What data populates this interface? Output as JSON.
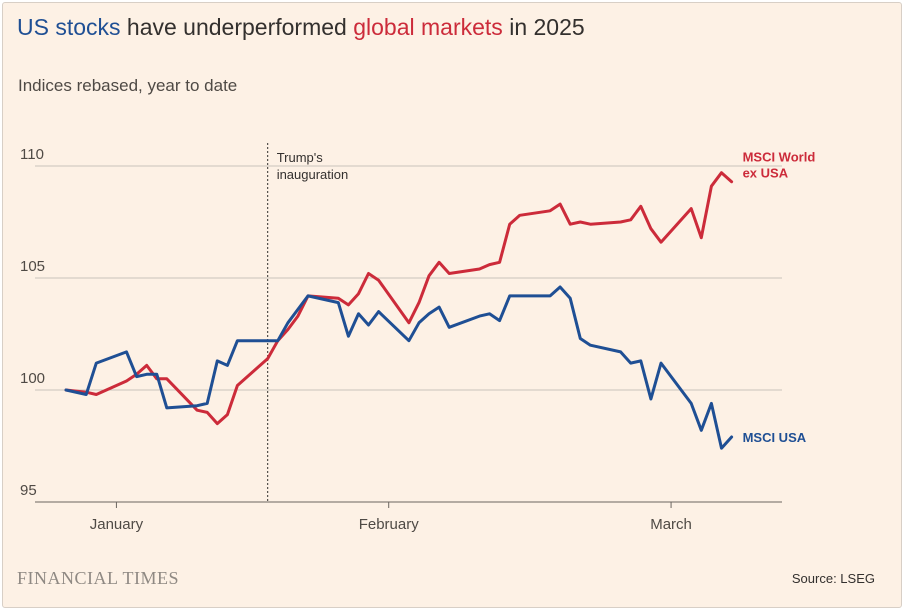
{
  "header": {
    "title_part1": "US stocks",
    "title_part2": " have underperformed ",
    "title_part3": "global markets",
    "title_part4": " in 2025",
    "subtitle": "Indices rebased, year to date"
  },
  "footer": {
    "brand": "FINANCIAL TIMES",
    "source": "Source: LSEG"
  },
  "colors": {
    "background": "#fdf1e5",
    "us_series": "#1f4f94",
    "world_series": "#cc2b3a",
    "grid": "#c9c2bb",
    "text": "#33302e"
  },
  "chart_data": {
    "type": "line",
    "title": "US stocks have underperformed global markets in 2025",
    "subtitle": "Indices rebased, year to date",
    "xlabel": "",
    "ylabel": "",
    "ylim": [
      95,
      110
    ],
    "yticks": [
      95,
      100,
      105,
      110
    ],
    "xlim": [
      "2024-12-31",
      "2025-03-12"
    ],
    "xticks": [
      {
        "date": "2025-01-05",
        "label": "January"
      },
      {
        "date": "2025-02-01",
        "label": "February"
      },
      {
        "date": "2025-03-01",
        "label": "March"
      }
    ],
    "grid": "horizontal",
    "annotation": {
      "date": "2025-01-20",
      "text_lines": [
        "Trump's",
        "inauguration"
      ]
    },
    "series": [
      {
        "name": "MSCI World ex USA",
        "label_lines": [
          "MSCI World",
          "ex USA"
        ],
        "color": "#cc2b3a",
        "points": [
          [
            "2024-12-31",
            100.0
          ],
          [
            "2025-01-02",
            99.9
          ],
          [
            "2025-01-03",
            99.8
          ],
          [
            "2025-01-06",
            100.4
          ],
          [
            "2025-01-07",
            100.7
          ],
          [
            "2025-01-08",
            101.1
          ],
          [
            "2025-01-09",
            100.5
          ],
          [
            "2025-01-10",
            100.5
          ],
          [
            "2025-01-13",
            99.1
          ],
          [
            "2025-01-14",
            99.0
          ],
          [
            "2025-01-15",
            98.5
          ],
          [
            "2025-01-16",
            98.9
          ],
          [
            "2025-01-17",
            100.2
          ],
          [
            "2025-01-20",
            101.4
          ],
          [
            "2025-01-21",
            102.2
          ],
          [
            "2025-01-22",
            102.7
          ],
          [
            "2025-01-23",
            103.3
          ],
          [
            "2025-01-24",
            104.2
          ],
          [
            "2025-01-27",
            104.1
          ],
          [
            "2025-01-28",
            103.8
          ],
          [
            "2025-01-29",
            104.3
          ],
          [
            "2025-01-30",
            105.2
          ],
          [
            "2025-01-31",
            104.9
          ],
          [
            "2025-02-03",
            103.0
          ],
          [
            "2025-02-04",
            103.9
          ],
          [
            "2025-02-05",
            105.1
          ],
          [
            "2025-02-06",
            105.7
          ],
          [
            "2025-02-07",
            105.2
          ],
          [
            "2025-02-10",
            105.4
          ],
          [
            "2025-02-11",
            105.6
          ],
          [
            "2025-02-12",
            105.7
          ],
          [
            "2025-02-13",
            107.4
          ],
          [
            "2025-02-14",
            107.8
          ],
          [
            "2025-02-17",
            108.0
          ],
          [
            "2025-02-18",
            108.3
          ],
          [
            "2025-02-19",
            107.4
          ],
          [
            "2025-02-20",
            107.5
          ],
          [
            "2025-02-21",
            107.4
          ],
          [
            "2025-02-24",
            107.5
          ],
          [
            "2025-02-25",
            107.6
          ],
          [
            "2025-02-26",
            108.2
          ],
          [
            "2025-02-27",
            107.2
          ],
          [
            "2025-02-28",
            106.6
          ],
          [
            "2025-03-03",
            108.1
          ],
          [
            "2025-03-04",
            106.8
          ],
          [
            "2025-03-05",
            109.1
          ],
          [
            "2025-03-06",
            109.7
          ],
          [
            "2025-03-07",
            109.3
          ]
        ]
      },
      {
        "name": "MSCI USA",
        "label_lines": [
          "MSCI USA"
        ],
        "color": "#1f4f94",
        "points": [
          [
            "2024-12-31",
            100.0
          ],
          [
            "2025-01-02",
            99.8
          ],
          [
            "2025-01-03",
            101.2
          ],
          [
            "2025-01-06",
            101.7
          ],
          [
            "2025-01-07",
            100.6
          ],
          [
            "2025-01-08",
            100.7
          ],
          [
            "2025-01-09",
            100.7
          ],
          [
            "2025-01-10",
            99.2
          ],
          [
            "2025-01-13",
            99.3
          ],
          [
            "2025-01-14",
            99.4
          ],
          [
            "2025-01-15",
            101.3
          ],
          [
            "2025-01-16",
            101.1
          ],
          [
            "2025-01-17",
            102.2
          ],
          [
            "2025-01-20",
            102.2
          ],
          [
            "2025-01-21",
            102.2
          ],
          [
            "2025-01-22",
            103.0
          ],
          [
            "2025-01-23",
            103.6
          ],
          [
            "2025-01-24",
            104.2
          ],
          [
            "2025-01-27",
            103.9
          ],
          [
            "2025-01-28",
            102.4
          ],
          [
            "2025-01-29",
            103.4
          ],
          [
            "2025-01-30",
            102.9
          ],
          [
            "2025-01-31",
            103.5
          ],
          [
            "2025-02-03",
            102.2
          ],
          [
            "2025-02-04",
            103.0
          ],
          [
            "2025-02-05",
            103.4
          ],
          [
            "2025-02-06",
            103.7
          ],
          [
            "2025-02-07",
            102.8
          ],
          [
            "2025-02-10",
            103.3
          ],
          [
            "2025-02-11",
            103.4
          ],
          [
            "2025-02-12",
            103.1
          ],
          [
            "2025-02-13",
            104.2
          ],
          [
            "2025-02-14",
            104.2
          ],
          [
            "2025-02-17",
            104.2
          ],
          [
            "2025-02-18",
            104.6
          ],
          [
            "2025-02-19",
            104.1
          ],
          [
            "2025-02-20",
            102.3
          ],
          [
            "2025-02-21",
            102.0
          ],
          [
            "2025-02-24",
            101.7
          ],
          [
            "2025-02-25",
            101.2
          ],
          [
            "2025-02-26",
            101.3
          ],
          [
            "2025-02-27",
            99.6
          ],
          [
            "2025-02-28",
            101.2
          ],
          [
            "2025-03-03",
            99.4
          ],
          [
            "2025-03-04",
            98.2
          ],
          [
            "2025-03-05",
            99.4
          ],
          [
            "2025-03-06",
            97.4
          ],
          [
            "2025-03-07",
            97.9
          ]
        ]
      }
    ]
  }
}
